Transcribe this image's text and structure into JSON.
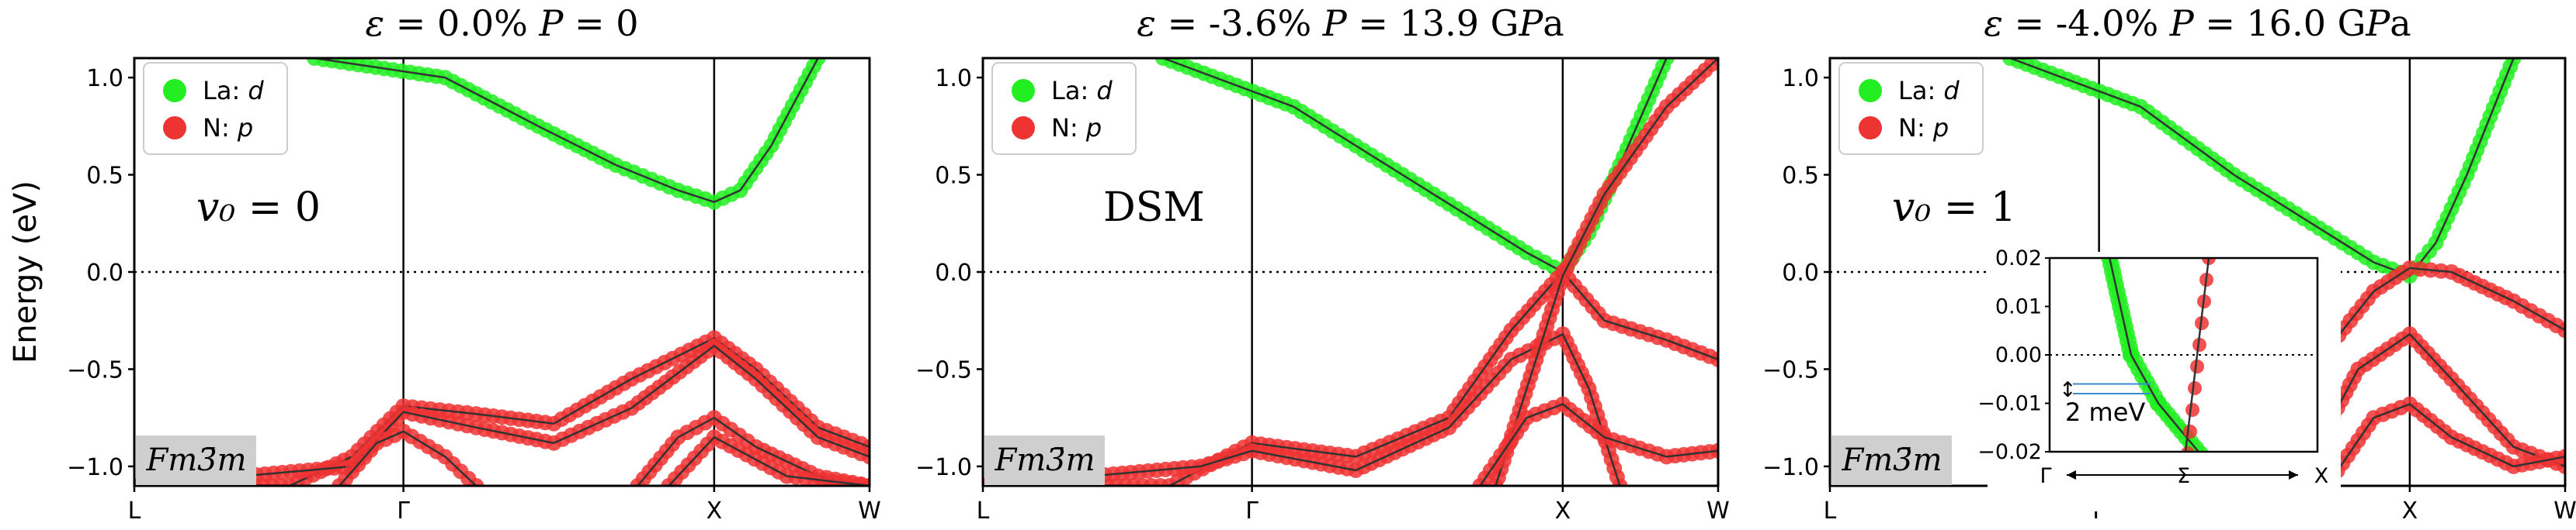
{
  "figure": {
    "ylabel": "Energy (eV)",
    "yticks": [
      "1.0",
      "0.5",
      "0.0",
      "−0.5",
      "−1.0"
    ],
    "xticks": [
      "L",
      "Γ",
      "X",
      "W"
    ],
    "space_group": "Fm3̄m",
    "legend": [
      {
        "label": "La: d",
        "color": "#22ee22"
      },
      {
        "label": "N: p",
        "color": "#ee3333"
      }
    ]
  },
  "panels": [
    {
      "title": "ε = 0.0%    P = 0",
      "annotation": "v₀ = 0"
    },
    {
      "title": "ε = -3.6%    P = 13.9 GPa",
      "annotation": "DSM"
    },
    {
      "title": "ε = -4.0%    P = 16.0 GPa",
      "annotation": "v₀ = 1"
    }
  ],
  "inset": {
    "yticks": [
      "0.02",
      "0.01",
      "0.00",
      "−0.01",
      "−0.02"
    ],
    "gap_label": "2 meV",
    "xlabels": [
      "Γ",
      "Σ",
      "X"
    ]
  },
  "chart_data": {
    "type": "line",
    "xlabel": "",
    "ylabel": "Energy (eV)",
    "ylim": [
      -1.1,
      1.1
    ],
    "x_ticks": [
      "L",
      "Γ",
      "X",
      "W"
    ],
    "k_path_positions": [
      0,
      0.866,
      1.866,
      2.366
    ],
    "grid": false,
    "legend_position": "top-left",
    "fermi_level": 0.0,
    "panels": [
      {
        "title": "ε = 0.0%    P = 0",
        "series": [
          {
            "name": "La: d",
            "x": [
              0.58,
              1.0,
              1.3,
              1.55,
              1.75,
              1.866,
              1.95,
              2.05,
              2.2
            ],
            "y": [
              1.1,
              1.0,
              0.75,
              0.55,
              0.42,
              0.36,
              0.42,
              0.65,
              1.1
            ]
          },
          {
            "name": "N: p",
            "x": [
              0.0,
              0.5,
              0.7,
              0.866,
              1.1,
              1.35,
              1.6,
              1.866,
              2.0,
              2.2,
              2.366
            ],
            "y": [
              -1.1,
              -1.1,
              -0.95,
              -0.69,
              -0.73,
              -0.78,
              -0.55,
              -0.34,
              -0.5,
              -0.8,
              -0.9
            ]
          },
          {
            "name": "N: p",
            "x": [
              0.0,
              0.7,
              0.866,
              1.1,
              1.35,
              1.6,
              1.866,
              2.0,
              2.2,
              2.366
            ],
            "y": [
              -1.1,
              -1.0,
              -0.72,
              -0.8,
              -0.88,
              -0.7,
              -0.38,
              -0.55,
              -0.85,
              -0.95
            ]
          },
          {
            "name": "N: p",
            "x": [
              0.66,
              0.78,
              0.866,
              1.0,
              1.1
            ],
            "y": [
              -1.1,
              -0.88,
              -0.82,
              -0.95,
              -1.1
            ]
          },
          {
            "name": "N: p",
            "x": [
              1.62,
              1.75,
              1.866,
              2.0,
              2.2,
              2.366
            ],
            "y": [
              -1.1,
              -0.85,
              -0.75,
              -0.9,
              -1.05,
              -1.1
            ]
          },
          {
            "name": "N: p",
            "x": [
              1.72,
              1.866,
              2.1,
              2.366
            ],
            "y": [
              -1.1,
              -0.85,
              -1.05,
              -1.1
            ]
          }
        ]
      },
      {
        "title": "ε = -3.6%    P = 13.9 GPa",
        "series": [
          {
            "name": "La: d",
            "x": [
              0.58,
              1.0,
              1.3,
              1.55,
              1.75,
              1.866,
              1.95,
              2.05,
              2.2
            ],
            "y": [
              1.1,
              0.85,
              0.55,
              0.3,
              0.1,
              0.0,
              0.2,
              0.55,
              1.1
            ]
          },
          {
            "name": "N: p",
            "x": [
              0.0,
              0.6,
              0.866,
              1.2,
              1.5,
              1.7,
              1.866,
              2.0,
              2.2,
              2.366
            ],
            "y": [
              -1.1,
              -1.1,
              -0.88,
              -0.95,
              -0.75,
              -0.3,
              0.0,
              -0.25,
              -0.35,
              -0.45
            ]
          },
          {
            "name": "N: p",
            "x": [
              0.0,
              0.7,
              0.866,
              1.2,
              1.5,
              1.7,
              1.866,
              1.95,
              2.05
            ],
            "y": [
              -1.1,
              -1.0,
              -0.92,
              -1.02,
              -0.8,
              -0.45,
              -0.32,
              -0.6,
              -1.1
            ]
          },
          {
            "name": "N: p",
            "x": [
              1.65,
              1.866,
              2.0,
              2.2,
              2.366
            ],
            "y": [
              -1.1,
              -0.02,
              0.4,
              0.85,
              1.1
            ]
          },
          {
            "name": "N: p",
            "x": [
              1.6,
              1.75,
              1.866,
              2.0,
              2.2,
              2.366
            ],
            "y": [
              -1.1,
              -0.75,
              -0.68,
              -0.85,
              -0.95,
              -0.92
            ]
          }
        ]
      },
      {
        "title": "ε = -4.0%    P = 16.0 GPa",
        "series": [
          {
            "name": "La: d",
            "x": [
              0.58,
              1.0,
              1.3,
              1.55,
              1.75,
              1.866,
              1.95,
              2.05,
              2.2
            ],
            "y": [
              1.1,
              0.85,
              0.5,
              0.25,
              0.05,
              -0.02,
              0.15,
              0.5,
              1.1
            ]
          },
          {
            "name": "N: p",
            "x": [
              1.4,
              1.6,
              1.75,
              1.866,
              2.0,
              2.2,
              2.366
            ],
            "y": [
              -0.8,
              -0.4,
              -0.1,
              0.02,
              0.0,
              -0.15,
              -0.3
            ]
          },
          {
            "name": "N: p",
            "x": [
              1.5,
              1.7,
              1.866,
              2.0,
              2.2,
              2.366
            ],
            "y": [
              -1.1,
              -0.5,
              -0.32,
              -0.55,
              -0.9,
              -1.0
            ]
          },
          {
            "name": "N: p",
            "x": [
              1.6,
              1.75,
              1.866,
              2.0,
              2.2,
              2.366
            ],
            "y": [
              -1.1,
              -0.75,
              -0.68,
              -0.85,
              -1.0,
              -0.95
            ]
          }
        ]
      }
    ]
  }
}
